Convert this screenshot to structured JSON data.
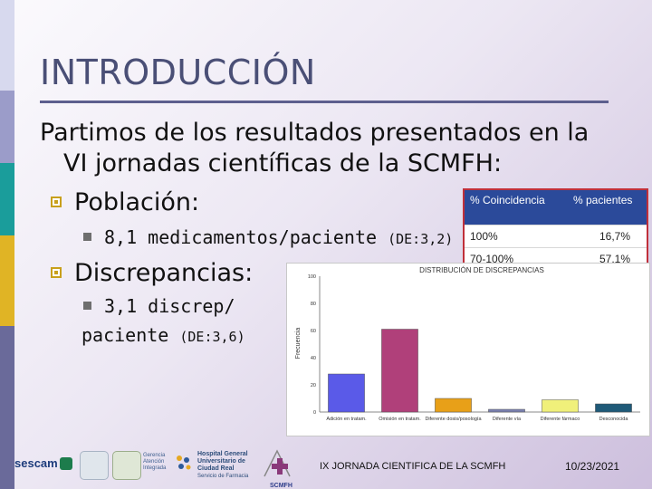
{
  "slide": {
    "title": "INTRODUCCIÓN",
    "intro_line1": "Partimos de los resultados presentados en la",
    "intro_line2": "VI jornadas científicas de la SCMFH:",
    "poblacion_label": "Población:",
    "med_text": "8,1 medicamentos/paciente",
    "med_de": "(DE:3,2)",
    "discrep_label": "Discrepancias:",
    "discrep_sub_line1": "3,1 discrep/",
    "discrep_sub_line2": "paciente",
    "discrep_de": "(DE:3,6)"
  },
  "table": {
    "headers": [
      "% Coincidencia",
      "% pacientes"
    ],
    "rows": [
      [
        "100%",
        "16,7%"
      ],
      [
        "70-100%",
        "57,1%"
      ]
    ]
  },
  "chart_data": {
    "type": "bar",
    "title": "DISTRIBUCIÓN DE DISCREPANCIAS",
    "ylabel": "Frecuencia",
    "xlabel": "",
    "categories": [
      "Adición en tratam.",
      "Omisión en tratam.",
      "Diferente dosis/posología",
      "Diferente vía",
      "Diferente fármaco",
      "Desconocida"
    ],
    "values": [
      28,
      61,
      10,
      2,
      9,
      6
    ],
    "ylim": [
      0,
      100
    ],
    "colors": [
      "#5a5ae8",
      "#b0407a",
      "#e8a018",
      "#7a80b0",
      "#f0f07a",
      "#1f5a78"
    ],
    "grid": false
  },
  "footer": {
    "center_text": "IX JORNADA CIENTIFICA DE LA SCMFH",
    "date": "10/23/2021"
  },
  "logos": {
    "sescam": "sescam",
    "gerencia": "Gerencia Atención Integrada",
    "hospital": "Hospital General Universitario de Ciudad Real",
    "hospital_sub": "Servicio de Farmacia",
    "scmfh": "SCMFH"
  },
  "colors": {
    "title": "#4a4f76",
    "table_header": "#2b4a9a",
    "table_border": "#c0303a",
    "bullet": "#c8a01c"
  }
}
